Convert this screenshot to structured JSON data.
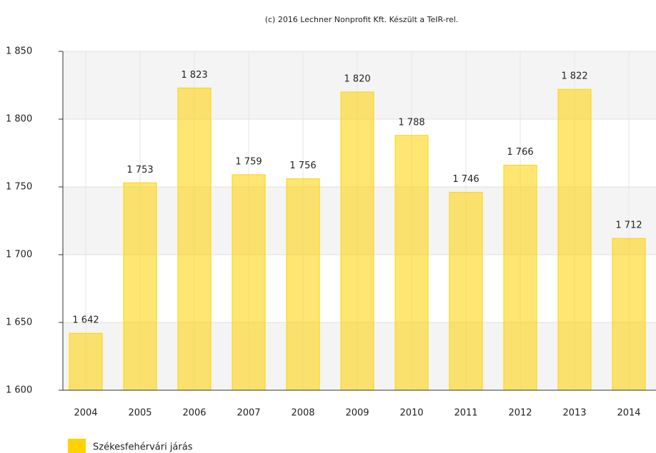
{
  "chart_data": {
    "type": "bar",
    "title": "(c) 2016 Lechner Nonprofit Kft. Készült a TeIR-rel.",
    "categories": [
      "2004",
      "2005",
      "2006",
      "2007",
      "2008",
      "2009",
      "2010",
      "2011",
      "2012",
      "2013",
      "2014"
    ],
    "series": [
      {
        "name": "Székesfehérvári járás",
        "color": "#ffd200",
        "values": [
          1642,
          1753,
          1823,
          1759,
          1756,
          1820,
          1788,
          1746,
          1766,
          1822,
          1712
        ],
        "value_labels": [
          "1 642",
          "1 753",
          "1 823",
          "1 759",
          "1 756",
          "1 820",
          "1 788",
          "1 746",
          "1 766",
          "1 822",
          "1 712"
        ]
      }
    ],
    "ylim": [
      1600,
      1850
    ],
    "yticks": [
      {
        "value": 1600,
        "label": "1 600"
      },
      {
        "value": 1650,
        "label": "1 650"
      },
      {
        "value": 1700,
        "label": "1 700"
      },
      {
        "value": 1750,
        "label": "1 750"
      },
      {
        "value": 1800,
        "label": "1 800"
      },
      {
        "value": 1850,
        "label": "1 850"
      }
    ],
    "grid": true
  }
}
